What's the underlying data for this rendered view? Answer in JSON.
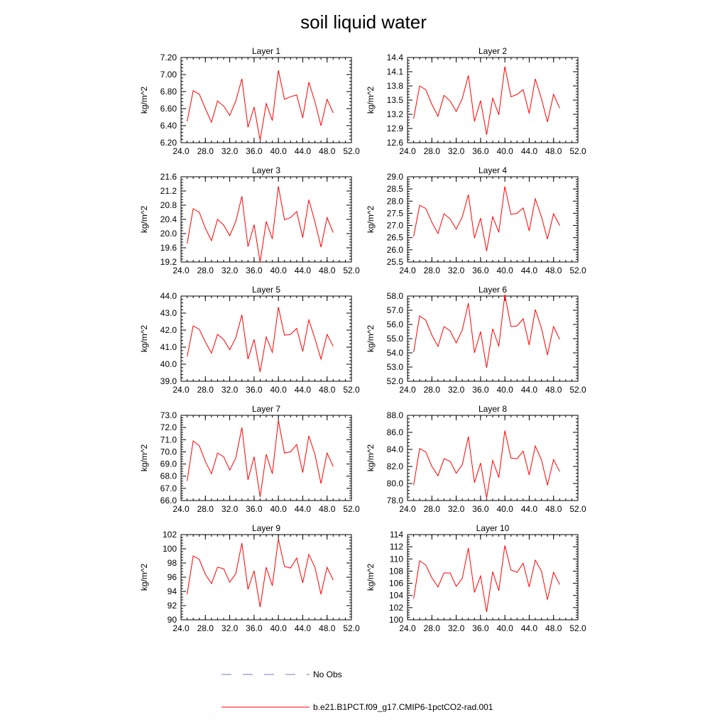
{
  "figure": {
    "title": "soil liquid water"
  },
  "legend": {
    "entries": [
      {
        "label": "No Obs",
        "style": "dashed",
        "color": "#7777cc"
      },
      {
        "label": "b.e21.B1PCT.f09_g17.CMIP6-1pctCO2-rad.001",
        "style": "solid",
        "color": "#ff0000"
      }
    ]
  },
  "chart_data": [
    {
      "type": "line",
      "title": "Layer 1",
      "ylabel": "kg/m^2",
      "xlim": [
        24,
        52
      ],
      "ylim": [
        6.2,
        7.2
      ],
      "xticks": [
        "24.0",
        "28.0",
        "32.0",
        "36.0",
        "40.0",
        "44.0",
        "48.0",
        "52.0"
      ],
      "yticks": [
        "6.20",
        "6.40",
        "6.60",
        "6.80",
        "7.00",
        "7.20"
      ],
      "series": [
        {
          "color": "#ff0000",
          "x": [
            25,
            26,
            27,
            28,
            29,
            30,
            31,
            32,
            33,
            34,
            35,
            36,
            37,
            38,
            39,
            40,
            41,
            42,
            43,
            44,
            45,
            46,
            47,
            48,
            49
          ],
          "y": [
            6.45,
            6.81,
            6.77,
            6.6,
            6.44,
            6.69,
            6.63,
            6.52,
            6.69,
            6.95,
            6.38,
            6.62,
            6.23,
            6.66,
            6.46,
            7.05,
            6.71,
            6.74,
            6.76,
            6.49,
            6.91,
            6.68,
            6.4,
            6.71,
            6.55
          ]
        }
      ]
    },
    {
      "type": "line",
      "title": "Layer 2",
      "ylabel": "kg/m^2",
      "xlim": [
        24,
        52
      ],
      "ylim": [
        12.6,
        14.4
      ],
      "xticks": [
        "24.0",
        "28.0",
        "32.0",
        "36.0",
        "40.0",
        "44.0",
        "48.0",
        "52.0"
      ],
      "yticks": [
        "12.6",
        "12.9",
        "13.2",
        "13.5",
        "13.8",
        "14.1",
        "14.4"
      ],
      "series": [
        {
          "color": "#ff0000",
          "x": [
            25,
            26,
            27,
            28,
            29,
            30,
            31,
            32,
            33,
            34,
            35,
            36,
            37,
            38,
            39,
            40,
            41,
            42,
            43,
            44,
            45,
            46,
            47,
            48,
            49
          ],
          "y": [
            13.11,
            13.8,
            13.72,
            13.41,
            13.16,
            13.6,
            13.48,
            13.26,
            13.53,
            14.02,
            13.05,
            13.49,
            12.77,
            13.54,
            13.19,
            14.21,
            13.57,
            13.62,
            13.72,
            13.22,
            13.95,
            13.53,
            13.04,
            13.62,
            13.33
          ]
        }
      ]
    },
    {
      "type": "line",
      "title": "Layer 3",
      "ylabel": "kg/m^2",
      "xlim": [
        24,
        52
      ],
      "ylim": [
        19.2,
        21.6
      ],
      "xticks": [
        "24.0",
        "28.0",
        "32.0",
        "36.0",
        "40.0",
        "44.0",
        "48.0",
        "52.0"
      ],
      "yticks": [
        "19.2",
        "19.6",
        "20.0",
        "20.4",
        "20.8",
        "21.2",
        "21.6"
      ],
      "series": [
        {
          "color": "#ff0000",
          "x": [
            25,
            26,
            27,
            28,
            29,
            30,
            31,
            32,
            33,
            34,
            35,
            36,
            37,
            38,
            39,
            40,
            41,
            42,
            43,
            44,
            45,
            46,
            47,
            48,
            49
          ],
          "y": [
            19.72,
            20.7,
            20.6,
            20.15,
            19.8,
            20.4,
            20.24,
            19.94,
            20.34,
            21.05,
            19.63,
            20.25,
            19.2,
            20.34,
            19.85,
            21.33,
            20.39,
            20.45,
            20.62,
            19.89,
            20.95,
            20.33,
            19.62,
            20.45,
            20.03
          ]
        }
      ]
    },
    {
      "type": "line",
      "title": "Layer 4",
      "ylabel": "kg/m^2",
      "xlim": [
        24,
        52
      ],
      "ylim": [
        25.5,
        29.0
      ],
      "xticks": [
        "24.0",
        "28.0",
        "32.0",
        "36.0",
        "40.0",
        "44.0",
        "48.0",
        "52.0"
      ],
      "yticks": [
        "25.5",
        "26.0",
        "26.5",
        "27.0",
        "27.5",
        "28.0",
        "28.5",
        "29.0"
      ],
      "series": [
        {
          "color": "#ff0000",
          "x": [
            25,
            26,
            27,
            28,
            29,
            30,
            31,
            32,
            33,
            34,
            35,
            36,
            37,
            38,
            39,
            40,
            41,
            42,
            43,
            44,
            45,
            46,
            47,
            48,
            49
          ],
          "y": [
            26.55,
            27.83,
            27.7,
            27.13,
            26.67,
            27.48,
            27.27,
            26.85,
            27.35,
            28.27,
            26.48,
            27.3,
            25.95,
            27.36,
            26.72,
            28.6,
            27.45,
            27.5,
            27.72,
            26.78,
            28.1,
            27.36,
            26.44,
            27.48,
            27.0
          ]
        }
      ]
    },
    {
      "type": "line",
      "title": "Layer 5",
      "ylabel": "kg/m^2",
      "xlim": [
        24,
        52
      ],
      "ylim": [
        39.0,
        44.0
      ],
      "xticks": [
        "24.0",
        "28.0",
        "32.0",
        "36.0",
        "40.0",
        "44.0",
        "48.0",
        "52.0"
      ],
      "yticks": [
        "39.0",
        "40.0",
        "41.0",
        "42.0",
        "43.0",
        "44.0"
      ],
      "series": [
        {
          "color": "#ff0000",
          "x": [
            25,
            26,
            27,
            28,
            29,
            30,
            31,
            32,
            33,
            34,
            35,
            36,
            37,
            38,
            39,
            40,
            41,
            42,
            43,
            44,
            45,
            46,
            47,
            48,
            49
          ],
          "y": [
            40.45,
            42.25,
            42.05,
            41.3,
            40.65,
            41.75,
            41.45,
            40.85,
            41.55,
            42.9,
            40.3,
            41.45,
            39.55,
            41.6,
            40.7,
            43.35,
            41.7,
            41.75,
            42.1,
            40.75,
            42.6,
            41.5,
            40.3,
            41.75,
            41.05
          ]
        }
      ]
    },
    {
      "type": "line",
      "title": "Layer 6",
      "ylabel": "kg/m^2",
      "xlim": [
        24,
        52
      ],
      "ylim": [
        52.0,
        58.0
      ],
      "xticks": [
        "24.0",
        "28.0",
        "32.0",
        "36.0",
        "40.0",
        "44.0",
        "48.0",
        "52.0"
      ],
      "yticks": [
        "52.0",
        "53.0",
        "54.0",
        "55.0",
        "56.0",
        "57.0",
        "58.0"
      ],
      "series": [
        {
          "color": "#ff0000",
          "x": [
            25,
            26,
            27,
            28,
            29,
            30,
            31,
            32,
            33,
            34,
            35,
            36,
            37,
            38,
            39,
            40,
            41,
            42,
            43,
            44,
            45,
            46,
            47,
            48,
            49
          ],
          "y": [
            54.05,
            56.6,
            56.3,
            55.25,
            54.45,
            55.85,
            55.55,
            54.7,
            55.6,
            57.5,
            54.0,
            55.5,
            52.95,
            55.7,
            54.45,
            58.1,
            55.85,
            55.9,
            56.4,
            54.55,
            57.05,
            55.75,
            53.85,
            55.85,
            54.95
          ]
        }
      ]
    },
    {
      "type": "line",
      "title": "Layer 7",
      "ylabel": "kg/m^2",
      "xlim": [
        24,
        52
      ],
      "ylim": [
        66.0,
        73.0
      ],
      "xticks": [
        "24.0",
        "28.0",
        "32.0",
        "36.0",
        "40.0",
        "44.0",
        "48.0",
        "52.0"
      ],
      "yticks": [
        "66.0",
        "67.0",
        "68.0",
        "69.0",
        "70.0",
        "71.0",
        "72.0",
        "73.0"
      ],
      "series": [
        {
          "color": "#ff0000",
          "x": [
            25,
            26,
            27,
            28,
            29,
            30,
            31,
            32,
            33,
            34,
            35,
            36,
            37,
            38,
            39,
            40,
            41,
            42,
            43,
            44,
            45,
            46,
            47,
            48,
            49
          ],
          "y": [
            67.6,
            70.9,
            70.5,
            69.2,
            68.2,
            69.9,
            69.6,
            68.5,
            69.5,
            72.0,
            67.7,
            69.6,
            66.3,
            69.8,
            68.2,
            72.6,
            69.9,
            70.0,
            70.6,
            68.3,
            71.3,
            69.8,
            67.4,
            69.9,
            68.8
          ]
        }
      ]
    },
    {
      "type": "line",
      "title": "Layer 8",
      "ylabel": "kg/m^2",
      "xlim": [
        24,
        52
      ],
      "ylim": [
        78.0,
        88.0
      ],
      "xticks": [
        "24.0",
        "28.0",
        "32.0",
        "36.0",
        "40.0",
        "44.0",
        "48.0",
        "52.0"
      ],
      "yticks": [
        "78.0",
        "80.0",
        "82.0",
        "84.0",
        "86.0",
        "88.0"
      ],
      "series": [
        {
          "color": "#ff0000",
          "x": [
            25,
            26,
            27,
            28,
            29,
            30,
            31,
            32,
            33,
            34,
            35,
            36,
            37,
            38,
            39,
            40,
            41,
            42,
            43,
            44,
            45,
            46,
            47,
            48,
            49
          ],
          "y": [
            79.8,
            84.1,
            83.7,
            82.0,
            80.9,
            82.9,
            82.6,
            81.2,
            82.2,
            85.5,
            80.1,
            82.4,
            78.3,
            82.7,
            80.7,
            86.2,
            83.0,
            82.9,
            83.8,
            81.0,
            84.4,
            82.8,
            79.8,
            82.8,
            81.4
          ]
        }
      ]
    },
    {
      "type": "line",
      "title": "Layer 9",
      "ylabel": "kg/m^2",
      "xlim": [
        24,
        52
      ],
      "ylim": [
        90,
        102
      ],
      "xticks": [
        "24.0",
        "28.0",
        "32.0",
        "36.0",
        "40.0",
        "44.0",
        "48.0",
        "52.0"
      ],
      "yticks": [
        "90",
        "92",
        "94",
        "96",
        "98",
        "100",
        "102"
      ],
      "series": [
        {
          "color": "#ff0000",
          "x": [
            25,
            26,
            27,
            28,
            29,
            30,
            31,
            32,
            33,
            34,
            35,
            36,
            37,
            38,
            39,
            40,
            41,
            42,
            43,
            44,
            45,
            46,
            47,
            48,
            49
          ],
          "y": [
            93.6,
            99.0,
            98.5,
            96.4,
            95.1,
            97.4,
            97.2,
            95.3,
            96.5,
            100.8,
            94.3,
            96.9,
            91.8,
            97.4,
            94.8,
            101.4,
            97.5,
            97.3,
            98.7,
            95.2,
            99.2,
            97.4,
            93.6,
            97.4,
            95.6
          ]
        }
      ]
    },
    {
      "type": "line",
      "title": "Layer 10",
      "ylabel": "kg/m^2",
      "xlim": [
        24,
        52
      ],
      "ylim": [
        100,
        114
      ],
      "xticks": [
        "24.0",
        "28.0",
        "32.0",
        "36.0",
        "40.0",
        "44.0",
        "48.0",
        "52.0"
      ],
      "yticks": [
        "100",
        "102",
        "104",
        "106",
        "108",
        "110",
        "112",
        "114"
      ],
      "series": [
        {
          "color": "#ff0000",
          "x": [
            25,
            26,
            27,
            28,
            29,
            30,
            31,
            32,
            33,
            34,
            35,
            36,
            37,
            38,
            39,
            40,
            41,
            42,
            43,
            44,
            45,
            46,
            47,
            48,
            49
          ],
          "y": [
            103.5,
            109.7,
            109.0,
            106.9,
            105.4,
            107.7,
            107.7,
            105.5,
            106.8,
            111.8,
            104.5,
            107.2,
            101.3,
            107.9,
            104.8,
            112.2,
            108.2,
            107.8,
            109.3,
            105.4,
            109.8,
            108.0,
            103.3,
            107.8,
            105.8
          ]
        }
      ]
    }
  ]
}
